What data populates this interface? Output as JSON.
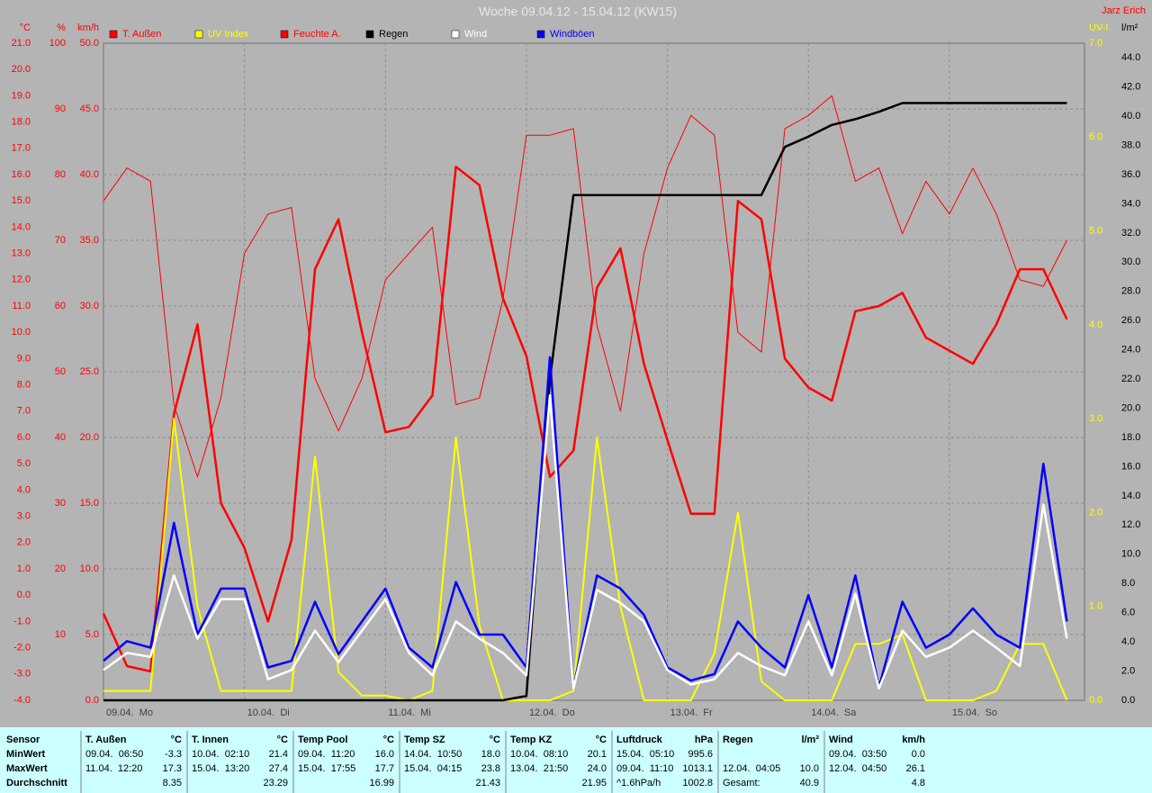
{
  "title": "Woche 09.04.12 - 15.04.12 (KW15)",
  "author": "Jarz Erich",
  "chart_data": {
    "type": "line",
    "x": [
      0,
      4,
      8,
      12,
      16,
      20,
      24,
      28,
      32,
      36,
      40,
      44,
      48,
      52,
      56,
      60,
      64,
      68,
      72,
      76,
      80,
      84,
      88,
      92,
      96,
      100,
      104,
      108,
      112,
      116,
      120,
      124,
      128,
      132,
      136,
      140,
      144,
      148,
      152,
      156,
      160,
      164
    ],
    "xlim": [
      0,
      167
    ],
    "xticks": [
      {
        "value": 0,
        "label": "09.04.  Mo"
      },
      {
        "value": 24,
        "label": "10.04.  Di"
      },
      {
        "value": 48,
        "label": "11.04.  Mi"
      },
      {
        "value": 72,
        "label": "12.04.  Do"
      },
      {
        "value": 96,
        "label": "13.04.  Fr"
      },
      {
        "value": 120,
        "label": "14.04.  Sa"
      },
      {
        "value": 144,
        "label": "15.04.  So"
      }
    ],
    "grid": true,
    "axes": [
      {
        "unit": "°C",
        "color": "#ff0000",
        "side": "left",
        "lim": [
          -4,
          21
        ],
        "ticks": [
          {
            "value": -4,
            "label": "-4.0"
          },
          {
            "value": -3,
            "label": "-3.0"
          },
          {
            "value": -2,
            "label": "-2.0"
          },
          {
            "value": -1,
            "label": "-1.0"
          },
          {
            "value": 0,
            "label": "0.0"
          },
          {
            "value": 1,
            "label": "1.0"
          },
          {
            "value": 2,
            "label": "2.0"
          },
          {
            "value": 3,
            "label": "3.0"
          },
          {
            "value": 4,
            "label": "4.0"
          },
          {
            "value": 5,
            "label": "5.0"
          },
          {
            "value": 6,
            "label": "6.0"
          },
          {
            "value": 7,
            "label": "7.0"
          },
          {
            "value": 8,
            "label": "8.0"
          },
          {
            "value": 9,
            "label": "9.0"
          },
          {
            "value": 10,
            "label": "10.0"
          },
          {
            "value": 11,
            "label": "11.0"
          },
          {
            "value": 12,
            "label": "12.0"
          },
          {
            "value": 13,
            "label": "13.0"
          },
          {
            "value": 14,
            "label": "14.0"
          },
          {
            "value": 15,
            "label": "15.0"
          },
          {
            "value": 16,
            "label": "16.0"
          },
          {
            "value": 17,
            "label": "17.0"
          },
          {
            "value": 18,
            "label": "18.0"
          },
          {
            "value": 19,
            "label": "19.0"
          },
          {
            "value": 20,
            "label": "20.0"
          },
          {
            "value": 21,
            "label": "21.0"
          }
        ]
      },
      {
        "unit": "%",
        "color": "#ff0000",
        "side": "left",
        "lim": [
          0,
          100
        ],
        "ticks": [
          10,
          20,
          30,
          40,
          50,
          60,
          70,
          80,
          90,
          100
        ]
      },
      {
        "unit": "km/h",
        "color": "#ff0000",
        "side": "left",
        "lim": [
          0,
          50
        ],
        "grid": true,
        "ticks": [
          {
            "value": 0,
            "label": "0.0"
          },
          {
            "value": 5,
            "label": "5.0"
          },
          {
            "value": 10,
            "label": "10.0"
          },
          {
            "value": 15,
            "label": "15.0"
          },
          {
            "value": 20,
            "label": "20.0"
          },
          {
            "value": 25,
            "label": "25.0"
          },
          {
            "value": 30,
            "label": "30.0"
          },
          {
            "value": 35,
            "label": "35.0"
          },
          {
            "value": 40,
            "label": "40.0"
          },
          {
            "value": 45,
            "label": "45.0"
          },
          {
            "value": 50,
            "label": "50.0"
          }
        ]
      },
      {
        "unit": "UV-I",
        "color": "#ffff00",
        "side": "right",
        "lim": [
          0,
          7
        ],
        "ticks": [
          {
            "value": 0,
            "label": "0.0"
          },
          {
            "value": 1,
            "label": "1.0"
          },
          {
            "value": 2,
            "label": "2.0"
          },
          {
            "value": 3,
            "label": "3.0"
          },
          {
            "value": 4,
            "label": "4.0"
          },
          {
            "value": 5,
            "label": "5.0"
          },
          {
            "value": 6,
            "label": "6.0"
          },
          {
            "value": 7,
            "label": "7.0"
          }
        ]
      },
      {
        "unit": "l/m²",
        "color": "#000000",
        "side": "right",
        "lim": [
          0,
          45
        ],
        "ticks": [
          {
            "value": 0,
            "label": "0.0"
          },
          {
            "value": 2,
            "label": "2.0"
          },
          {
            "value": 4,
            "label": "4.0"
          },
          {
            "value": 6,
            "label": "6.0"
          },
          {
            "value": 8,
            "label": "8.0"
          },
          {
            "value": 10,
            "label": "10.0"
          },
          {
            "value": 12,
            "label": "12.0"
          },
          {
            "value": 14,
            "label": "14.0"
          },
          {
            "value": 16,
            "label": "16.0"
          },
          {
            "value": 18,
            "label": "18.0"
          },
          {
            "value": 20,
            "label": "20.0"
          },
          {
            "value": 22,
            "label": "22.0"
          },
          {
            "value": 24,
            "label": "24.0"
          },
          {
            "value": 26,
            "label": "26.0"
          },
          {
            "value": 28,
            "label": "28.0"
          },
          {
            "value": 30,
            "label": "30.0"
          },
          {
            "value": 32,
            "label": "32.0"
          },
          {
            "value": 34,
            "label": "34.0"
          },
          {
            "value": 36,
            "label": "36.0"
          },
          {
            "value": 38,
            "label": "38.0"
          },
          {
            "value": 40,
            "label": "40.0"
          },
          {
            "value": 42,
            "label": "42.0"
          },
          {
            "value": 44,
            "label": "44.0"
          }
        ]
      }
    ],
    "series": [
      {
        "name": "T. Außen",
        "color": "#ff0000",
        "axis": 0,
        "values": [
          -0.7,
          -2.7,
          -2.9,
          6.9,
          10.3,
          3.5,
          1.8,
          -1.0,
          2.1,
          12.4,
          14.3,
          10.0,
          6.2,
          6.4,
          7.6,
          16.3,
          15.6,
          11.3,
          9.1,
          4.5,
          5.5,
          11.7,
          13.2,
          8.8,
          5.9,
          3.1,
          3.1,
          15.0,
          14.3,
          9.0,
          7.9,
          7.4,
          10.8,
          11.0,
          11.5,
          9.8,
          9.3,
          8.8,
          10.3,
          12.4,
          12.4,
          10.5
        ]
      },
      {
        "name": "UV Index",
        "color": "#ffff00",
        "axis": 3,
        "values": [
          0.1,
          0.1,
          0.1,
          3.0,
          1.0,
          0.1,
          0.1,
          0.1,
          0.1,
          2.6,
          0.3,
          0.05,
          0.05,
          0,
          0.1,
          2.8,
          0.8,
          0,
          0,
          0,
          0.1,
          2.8,
          1.0,
          0,
          0,
          0,
          0.5,
          2.0,
          0.2,
          0,
          0,
          0,
          0.6,
          0.6,
          0.7,
          0,
          0,
          0,
          0.1,
          0.6,
          0.6,
          0
        ]
      },
      {
        "name": "Feuchte A.",
        "color": "#ff0000",
        "axis": 1,
        "values": [
          76,
          81,
          79,
          45,
          34,
          46,
          68,
          74,
          75,
          49,
          41,
          49,
          64,
          68,
          72,
          45,
          46,
          61,
          86,
          86,
          87,
          57,
          44,
          68,
          81,
          89,
          86,
          56,
          53,
          87,
          89,
          92,
          79,
          81,
          71,
          79,
          74,
          81,
          74,
          64,
          63,
          70
        ]
      },
      {
        "name": "Regen",
        "color": "#000000",
        "axis": 4,
        "values": [
          0,
          0,
          0,
          0,
          0,
          0,
          0,
          0,
          0,
          0,
          0,
          0,
          0,
          0,
          0,
          0,
          0,
          0,
          0.3,
          22.0,
          34.6,
          34.6,
          34.6,
          34.6,
          34.6,
          34.6,
          34.6,
          34.6,
          34.6,
          37.9,
          38.6,
          39.4,
          39.8,
          40.3,
          40.9,
          40.9,
          40.9,
          40.9,
          40.9,
          40.9,
          40.9,
          40.9
        ]
      },
      {
        "name": "Wind",
        "color": "#ffffff",
        "axis": 2,
        "values": [
          2.3,
          3.6,
          3.3,
          9.5,
          4.7,
          7.7,
          7.7,
          1.6,
          2.3,
          5.3,
          2.9,
          5.3,
          7.7,
          3.6,
          1.9,
          6.0,
          4.7,
          3.6,
          1.9,
          23.2,
          0.9,
          8.4,
          7.4,
          6.0,
          2.3,
          1.2,
          1.6,
          3.6,
          2.6,
          1.9,
          6.0,
          1.9,
          8.1,
          0.9,
          5.3,
          3.3,
          4.0,
          5.3,
          4.0,
          2.6,
          14.9,
          4.7
        ]
      },
      {
        "name": "Windböen",
        "color": "#0000ff",
        "axis": 2,
        "values": [
          3.0,
          4.5,
          4.0,
          13.5,
          5.0,
          8.5,
          8.5,
          2.5,
          3.0,
          7.5,
          3.5,
          6.0,
          8.5,
          4.0,
          2.5,
          9.0,
          5.0,
          5.0,
          2.5,
          26.1,
          1.0,
          9.5,
          8.5,
          6.5,
          2.5,
          1.5,
          2.0,
          6.0,
          4.0,
          2.5,
          8.0,
          2.5,
          9.5,
          1.0,
          7.5,
          4.0,
          5.0,
          7.0,
          5.0,
          4.0,
          18.0,
          6.0
        ]
      }
    ]
  },
  "stats": {
    "row_labels": [
      "Sensor",
      "MinWert",
      "MaxWert",
      "Durchschnitt"
    ],
    "columns": [
      {
        "title": "T. Außen",
        "unit": "°C",
        "rows": [
          [
            "09.04.  06:50",
            "-3.3"
          ],
          [
            "11.04.  12:20",
            "17.3"
          ],
          [
            null,
            "8.35"
          ]
        ]
      },
      {
        "title": "T. Innen",
        "unit": "°C",
        "rows": [
          [
            "10.04.  02:10",
            "21.4"
          ],
          [
            "15.04.  13:20",
            "27.4"
          ],
          [
            null,
            "23.29"
          ]
        ]
      },
      {
        "title": "Temp Pool",
        "unit": "°C",
        "rows": [
          [
            "09.04.  11:20",
            "16.0"
          ],
          [
            "15.04.  17:55",
            "17.7"
          ],
          [
            null,
            "16.99"
          ]
        ]
      },
      {
        "title": "Temp SZ",
        "unit": "°C",
        "rows": [
          [
            "14.04.  10:50",
            "18.0"
          ],
          [
            "15.04.  04:15",
            "23.8"
          ],
          [
            null,
            "21.43"
          ]
        ]
      },
      {
        "title": "Temp KZ",
        "unit": "°C",
        "rows": [
          [
            "10.04.  08:10",
            "20.1"
          ],
          [
            "13.04.  21:50",
            "24.0"
          ],
          [
            null,
            "21.95"
          ]
        ]
      },
      {
        "title": "Luftdruck",
        "unit": "hPa",
        "rows": [
          [
            "15.04.  05:10",
            "995.6"
          ],
          [
            "09.04.  11:10",
            "1013.1"
          ],
          [
            "^1.6hPa/h",
            "1002.8"
          ]
        ]
      },
      {
        "title": "Regen",
        "unit": "l/m²",
        "rows": [
          [
            null,
            null
          ],
          [
            "12.04.  04:05",
            "10.0"
          ],
          [
            "Gesamt:",
            "40.9"
          ]
        ]
      },
      {
        "title": "Wind",
        "unit": "km/h",
        "rows": [
          [
            "09.04.  03:50",
            "0.0"
          ],
          [
            "12.04.  04:50",
            "26.1"
          ],
          [
            null,
            "4.8"
          ]
        ]
      }
    ]
  }
}
